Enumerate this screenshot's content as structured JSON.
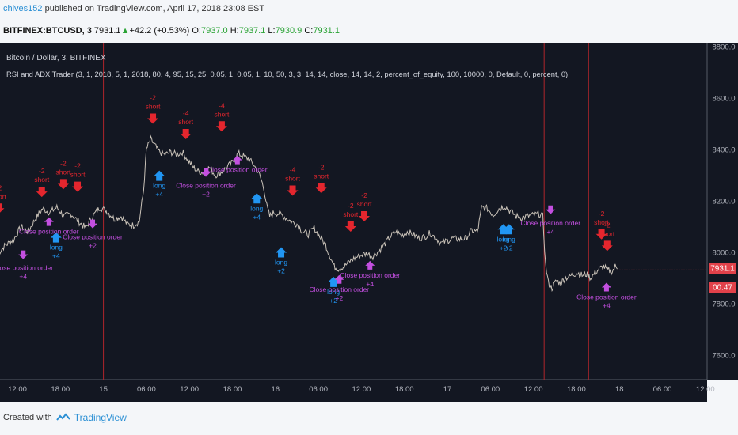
{
  "header": {
    "publisher": "chives152",
    "published_text": "published on TradingView.com, April 17, 2018 23:08 EST",
    "symbol": "BITFINEX:BTCUSD, 3",
    "last": "7931.1",
    "up_arrow": "▲",
    "change": "+42.2 (+0.53%)",
    "o_label": "O:",
    "o_value": "7937.0",
    "h_label": "H:",
    "h_value": "7937.1",
    "l_label": "L:",
    "l_value": "7930.9",
    "c_label": "C:",
    "c_value": "7931.1"
  },
  "legend": {
    "pair": "Bitcoin / Dollar, 3, BITFINEX",
    "strategy": "RSI and ADX Trader (3, 1, 2018, 5, 1, 2018, 80, 4, 95, 15, 25, 0.05, 1, 0.05, 1, 10, 50, 3, 3, 14, 14, close, 14, 14, 2, percent_of_equity, 100, 10000, 0, Default, 0, percent, 0)"
  },
  "price_badge": {
    "value": "7931.1",
    "timer": "00:47"
  },
  "colors": {
    "background": "#131722",
    "price_line": "#c9c2b8",
    "short": "#e4262e",
    "long": "#2196f3",
    "close": "#c34fe0",
    "badge": "#e2414a",
    "vline": "#b0252c"
  },
  "footer": {
    "created_with": "Created with",
    "brand": "TradingView"
  },
  "chart_data": {
    "type": "line",
    "title": "Bitcoin / Dollar, 3, BITFINEX",
    "ylim": [
      7480,
      8850
    ],
    "yticks": [
      7600,
      7800,
      8000,
      8200,
      8400,
      8600,
      8800
    ],
    "ytick_labels": [
      "7600.0",
      "7800.0",
      "8000.0",
      "8200.0",
      "8400.0",
      "8600.0",
      "8800.0"
    ],
    "xticks": [
      {
        "t": 12,
        "label": "12:00"
      },
      {
        "t": 18,
        "label": "18:00"
      },
      {
        "t": 24,
        "label": "15"
      },
      {
        "t": 30,
        "label": "06:00"
      },
      {
        "t": 36,
        "label": "12:00"
      },
      {
        "t": 42,
        "label": "18:00"
      },
      {
        "t": 48,
        "label": "16"
      },
      {
        "t": 54,
        "label": "06:00"
      },
      {
        "t": 60,
        "label": "12:00"
      },
      {
        "t": 66,
        "label": "18:00"
      },
      {
        "t": 72,
        "label": "17"
      },
      {
        "t": 78,
        "label": "06:00"
      },
      {
        "t": 84,
        "label": "12:00"
      },
      {
        "t": 90,
        "label": "18:00"
      },
      {
        "t": 96,
        "label": "18"
      },
      {
        "t": 102,
        "label": "06:00"
      },
      {
        "t": 108,
        "label": "12:00"
      }
    ],
    "vlines": [
      24,
      85.5,
      91.7
    ],
    "price_path": [
      [
        9.3,
        7995
      ],
      [
        10.2,
        8025
      ],
      [
        11.5,
        8050
      ],
      [
        12.5,
        8100
      ],
      [
        13.5,
        8080
      ],
      [
        14.5,
        8130
      ],
      [
        15.5,
        8170
      ],
      [
        16.5,
        8155
      ],
      [
        17.5,
        8175
      ],
      [
        18.5,
        8140
      ],
      [
        19.5,
        8150
      ],
      [
        20.5,
        8120
      ],
      [
        21.5,
        8095
      ],
      [
        22.5,
        8140
      ],
      [
        23.5,
        8175
      ],
      [
        24.5,
        8160
      ],
      [
        25.5,
        8130
      ],
      [
        26.5,
        8140
      ],
      [
        27.3,
        8110
      ],
      [
        28.2,
        8105
      ],
      [
        29,
        8120
      ],
      [
        29.6,
        8240
      ],
      [
        30,
        8400
      ],
      [
        30.6,
        8440
      ],
      [
        31.2,
        8415
      ],
      [
        31.8,
        8390
      ],
      [
        32.6,
        8380
      ],
      [
        33.4,
        8390
      ],
      [
        34.2,
        8380
      ],
      [
        35,
        8390
      ],
      [
        35.8,
        8360
      ],
      [
        36.4,
        8335
      ],
      [
        37.2,
        8315
      ],
      [
        38,
        8310
      ],
      [
        38.8,
        8330
      ],
      [
        39.6,
        8300
      ],
      [
        40.4,
        8310
      ],
      [
        41.2,
        8330
      ],
      [
        42,
        8350
      ],
      [
        42.8,
        8385
      ],
      [
        43.4,
        8375
      ],
      [
        44.2,
        8365
      ],
      [
        45,
        8340
      ],
      [
        45.8,
        8300
      ],
      [
        46.4,
        8250
      ],
      [
        46.8,
        8180
      ],
      [
        47.2,
        8140
      ],
      [
        47.8,
        8155
      ],
      [
        48.6,
        8150
      ],
      [
        49.4,
        8135
      ],
      [
        50.2,
        8120
      ],
      [
        51,
        8110
      ],
      [
        51.8,
        8080
      ],
      [
        52.6,
        8070
      ],
      [
        53.4,
        8095
      ],
      [
        54.2,
        8060
      ],
      [
        55,
        8030
      ],
      [
        55.6,
        7985
      ],
      [
        56.2,
        7945
      ],
      [
        56.8,
        7935
      ],
      [
        57.6,
        7945
      ],
      [
        58.4,
        7965
      ],
      [
        59.2,
        7980
      ],
      [
        60,
        7990
      ],
      [
        60.8,
        7995
      ],
      [
        61.6,
        7985
      ],
      [
        62.4,
        8005
      ],
      [
        63.2,
        8030
      ],
      [
        64,
        8060
      ],
      [
        64.8,
        8080
      ],
      [
        65.6,
        8065
      ],
      [
        66.4,
        8080
      ],
      [
        67.2,
        8070
      ],
      [
        68,
        8055
      ],
      [
        68.8,
        8060
      ],
      [
        69.6,
        8075
      ],
      [
        70.4,
        8055
      ],
      [
        71.2,
        8035
      ],
      [
        72,
        8045
      ],
      [
        72.8,
        8055
      ],
      [
        73.6,
        8050
      ],
      [
        74.6,
        8055
      ],
      [
        75.4,
        8085
      ],
      [
        76.2,
        8080
      ],
      [
        76.8,
        8175
      ],
      [
        77.6,
        8170
      ],
      [
        78.4,
        8145
      ],
      [
        79.2,
        8170
      ],
      [
        80,
        8180
      ],
      [
        80.8,
        8160
      ],
      [
        81.6,
        8140
      ],
      [
        82.4,
        8135
      ],
      [
        83.2,
        8140
      ],
      [
        84,
        8145
      ],
      [
        84.8,
        8150
      ],
      [
        85.3,
        8140
      ],
      [
        85.7,
        7950
      ],
      [
        86.1,
        7880
      ],
      [
        86.6,
        7860
      ],
      [
        87.2,
        7890
      ],
      [
        87.8,
        7880
      ],
      [
        88.4,
        7900
      ],
      [
        89,
        7905
      ],
      [
        89.6,
        7915
      ],
      [
        90.2,
        7920
      ],
      [
        90.8,
        7910
      ],
      [
        91.4,
        7915
      ],
      [
        92,
        7900
      ],
      [
        92.6,
        7920
      ],
      [
        93.2,
        7935
      ],
      [
        93.8,
        7945
      ],
      [
        94.4,
        7930
      ],
      [
        95,
        7925
      ],
      [
        95.4,
        7945
      ],
      [
        95.7,
        7935
      ]
    ],
    "signals": [
      {
        "kind": "short",
        "t": 9.4,
        "price": 8150,
        "text": "short",
        "qty": "-2"
      },
      {
        "kind": "close",
        "t": 12.8,
        "price": 7955,
        "text": "Close position order",
        "qty": "+4"
      },
      {
        "kind": "short",
        "t": 15.4,
        "price": 8215,
        "text": "short",
        "qty": "-2"
      },
      {
        "kind": "long",
        "t": 17.4,
        "price": 8078,
        "text": "long",
        "qty": "+4"
      },
      {
        "kind": "close",
        "t": 16.4,
        "price": 8155,
        "text": "Close position order",
        "qty": "",
        "dir": "up"
      },
      {
        "kind": "short",
        "t": 18.4,
        "price": 8245,
        "text": "short",
        "qty": "-2"
      },
      {
        "kind": "short",
        "t": 20.4,
        "price": 8235,
        "text": "short",
        "qty": "-2"
      },
      {
        "kind": "close",
        "t": 22.5,
        "price": 8075,
        "text": "Close position order",
        "qty": "+2",
        "dir": "down"
      },
      {
        "kind": "short",
        "t": 30.9,
        "price": 8500,
        "text": "short",
        "qty": "-2"
      },
      {
        "kind": "long",
        "t": 31.8,
        "price": 8318,
        "text": "long",
        "qty": "+4"
      },
      {
        "kind": "short",
        "t": 35.5,
        "price": 8440,
        "text": "short",
        "qty": "-4"
      },
      {
        "kind": "close",
        "t": 38.3,
        "price": 8275,
        "text": "Close position order",
        "qty": "+2",
        "dir": "down"
      },
      {
        "kind": "short",
        "t": 40.5,
        "price": 8470,
        "text": "short",
        "qty": "-4"
      },
      {
        "kind": "close",
        "t": 42.7,
        "price": 8395,
        "text": "Close position order",
        "qty": "",
        "dir": "up"
      },
      {
        "kind": "long",
        "t": 45.4,
        "price": 8230,
        "text": "long",
        "qty": "+4"
      },
      {
        "kind": "short",
        "t": 50.4,
        "price": 8220,
        "text": "short",
        "qty": "-4"
      },
      {
        "kind": "long",
        "t": 48.8,
        "price": 8020,
        "text": "long",
        "qty": "+2"
      },
      {
        "kind": "short",
        "t": 54.4,
        "price": 8230,
        "text": "short",
        "qty": "-2"
      },
      {
        "kind": "long",
        "t": 56.1,
        "price": 7905,
        "text": "long",
        "qty": "+2"
      },
      {
        "kind": "close",
        "t": 56.9,
        "price": 7930,
        "text": "Close position order",
        "qty": "+2",
        "dir": "up"
      },
      {
        "kind": "short",
        "t": 58.5,
        "price": 8080,
        "text": "short",
        "qty": "-2"
      },
      {
        "kind": "short",
        "t": 60.4,
        "price": 8120,
        "text": "short",
        "qty": "-2"
      },
      {
        "kind": "close",
        "t": 61.2,
        "price": 7985,
        "text": "Close position order",
        "qty": "+4",
        "dir": "up"
      },
      {
        "kind": "long",
        "t": 79.8,
        "price": 8110,
        "text": "long",
        "qty": "+2"
      },
      {
        "kind": "long",
        "t": 80.6,
        "price": 8110,
        "text": "long",
        "qty": "+2"
      },
      {
        "kind": "close",
        "t": 86.4,
        "price": 8130,
        "text": "Close position order",
        "qty": "+4",
        "dir": "down"
      },
      {
        "kind": "short",
        "t": 93.5,
        "price": 8050,
        "text": "short",
        "qty": "-2"
      },
      {
        "kind": "short",
        "t": 94.3,
        "price": 8005,
        "text": "short",
        "qty": "-2"
      },
      {
        "kind": "close",
        "t": 94.2,
        "price": 7900,
        "text": "Close position order",
        "qty": "+4",
        "dir": "up"
      }
    ]
  }
}
